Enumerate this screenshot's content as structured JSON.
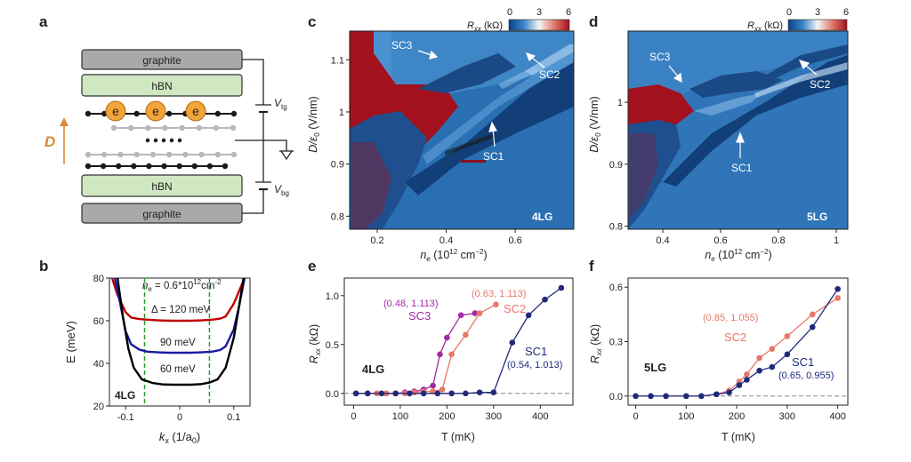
{
  "panels": {
    "a": {
      "label": "a",
      "layers": [
        {
          "label": "graphite"
        },
        {
          "label": "hBN"
        },
        {
          "label": "hBN"
        },
        {
          "label": "graphite"
        }
      ],
      "electron_label": "e",
      "vtg_label": "V",
      "vtg_sub": "tg",
      "vbg_label": "V",
      "vbg_sub": "bg",
      "field_label": "D",
      "colors": {
        "graphite": "#a9a9a9",
        "hbn": "#cfe8c2",
        "electron": "#f2a33a",
        "arrow": "#d98a3c",
        "atom_dark": "#1a1a1a",
        "atom_light": "#b8b8b8"
      }
    },
    "b": {
      "label": "b",
      "ne_text": "n",
      "ne_sub": "e",
      "ne_value": " = 0.6*10",
      "ne_sup": "12",
      "ne_unit": "cm",
      "ne_unit_sup": "-2",
      "delta_text": "Δ = 120 meV",
      "label_90": "90 meV",
      "label_60": "60 meV",
      "inset": "4LG"
    },
    "c": {
      "label": "c",
      "colorbar_label": "R",
      "colorbar_sub": "xx",
      "colorbar_unit": " (kΩ)",
      "colorbar_ticks": [
        "0",
        "3",
        "6"
      ],
      "sample": "4LG",
      "annotations": [
        "SC3",
        "SC2",
        "SC1"
      ]
    },
    "d": {
      "label": "d",
      "colorbar_label": "R",
      "colorbar_sub": "xx",
      "colorbar_unit": " (kΩ)",
      "colorbar_ticks": [
        "0",
        "3",
        "6"
      ],
      "sample": "5LG",
      "annotations": [
        "SC3",
        "SC2",
        "SC1"
      ]
    },
    "e": {
      "label": "e",
      "sample": "4LG",
      "sc3_coord": "(0.48, 1.113)",
      "sc2_coord": "(0.63, 1.113)",
      "sc1_coord": "(0.54, 1.013)"
    },
    "f": {
      "label": "f",
      "sample": "5LG",
      "sc2_coord": "(0.85, 1.055)",
      "sc1_coord": "(0.65, 0.955)"
    }
  },
  "chart_data": [
    {
      "panel": "b",
      "type": "line",
      "xlabel": "k",
      "xlabel_sub": "x",
      "xlabel_unit": " (1/a",
      "xlabel_unit_sub": "0",
      "xlabel_unit_end": ")",
      "ylabel": "E (meV)",
      "xlim": [
        -0.13,
        0.13
      ],
      "ylim": [
        20,
        80
      ],
      "xticks": [
        -0.1,
        0,
        0.1
      ],
      "xtick_labels": [
        "-0.1",
        "0",
        "0.1"
      ],
      "yticks": [
        20,
        40,
        60,
        80
      ],
      "vlines": [
        -0.065,
        0.055
      ],
      "series": [
        {
          "color": "#c00000",
          "x": [
            -0.125,
            -0.115,
            -0.1,
            -0.09,
            -0.075,
            -0.06,
            -0.04,
            -0.02,
            0,
            0.02,
            0.04,
            0.06,
            0.075,
            0.085,
            0.1,
            0.11,
            0.12
          ],
          "y": [
            80,
            72,
            64,
            61.5,
            60.8,
            60.5,
            60.2,
            60,
            60,
            60,
            60.2,
            60.5,
            61,
            62,
            68,
            74,
            80
          ]
        },
        {
          "color": "#1a1aa0",
          "x": [
            -0.12,
            -0.11,
            -0.1,
            -0.09,
            -0.075,
            -0.06,
            -0.04,
            -0.02,
            0,
            0.02,
            0.04,
            0.06,
            0.075,
            0.085,
            0.1,
            0.11,
            0.12
          ],
          "y": [
            80,
            68,
            55,
            49,
            46.5,
            45.5,
            45.2,
            45,
            45,
            45,
            45.2,
            45.5,
            46.3,
            48,
            56,
            67,
            80
          ]
        },
        {
          "color": "#000000",
          "x": [
            -0.115,
            -0.105,
            -0.095,
            -0.085,
            -0.07,
            -0.05,
            -0.03,
            -0.01,
            0,
            0.02,
            0.04,
            0.055,
            0.07,
            0.085,
            0.1,
            0.11,
            0.118
          ],
          "y": [
            80,
            62,
            47,
            38,
            32.5,
            30.8,
            30.1,
            30,
            30,
            30,
            30.3,
            31,
            32.5,
            38,
            52,
            67,
            80
          ]
        }
      ]
    },
    {
      "panel": "c",
      "type": "heatmap",
      "xlabel": "n",
      "xlabel_sub": "e",
      "xlabel_unit": " (10",
      "xlabel_unit_sup": "12",
      "xlabel_unit_end": " cm",
      "xlabel_unit_sup2": "−2",
      "xlabel_unit_close": ")",
      "ylabel": "D/ε",
      "ylabel_sub": "0",
      "ylabel_unit": " (V/nm)",
      "xlim": [
        0.12,
        0.77
      ],
      "ylim": [
        0.775,
        1.155
      ],
      "xticks": [
        0.2,
        0.4,
        0.6
      ],
      "yticks": [
        0.8,
        0.9,
        1.0,
        1.1
      ],
      "zlabel": "R_xx (kΩ)",
      "zlim": [
        0,
        6
      ]
    },
    {
      "panel": "d",
      "type": "heatmap",
      "xlabel": "n",
      "xlabel_sub": "e",
      "xlabel_unit": " (10",
      "xlabel_unit_sup": "12",
      "xlabel_unit_end": " cm",
      "xlabel_unit_sup2": "−2",
      "xlabel_unit_close": ")",
      "ylabel": "D/ε",
      "ylabel_sub": "0",
      "ylabel_unit": " (V/nm)",
      "xlim": [
        0.28,
        1.04
      ],
      "ylim": [
        0.795,
        1.115
      ],
      "xticks": [
        0.4,
        0.6,
        0.8,
        1.0
      ],
      "yticks": [
        0.8,
        0.9,
        1.0
      ],
      "zlabel": "R_xx (kΩ)",
      "zlim": [
        0,
        6
      ]
    },
    {
      "panel": "e",
      "type": "line",
      "xlabel": "T (mK)",
      "ylabel": "R",
      "ylabel_sub": "xx",
      "ylabel_unit": " (kΩ)",
      "xlim": [
        -20,
        470
      ],
      "ylim": [
        -0.12,
        1.18
      ],
      "xticks": [
        0,
        100,
        200,
        300,
        400
      ],
      "yticks": [
        0.0,
        0.5,
        1.0
      ],
      "ytick_labels": [
        "0.0",
        "0.5",
        "1.0"
      ],
      "baseline": 0,
      "series": [
        {
          "name": "SC3",
          "color": "#a52aa5",
          "x": [
            5,
            30,
            50,
            70,
            90,
            110,
            130,
            150,
            170,
            185,
            200,
            230,
            260
          ],
          "y": [
            0,
            0,
            0,
            0,
            0,
            0.01,
            0.02,
            0.04,
            0.08,
            0.4,
            0.57,
            0.8,
            0.82
          ]
        },
        {
          "name": "SC2",
          "color": "#e8776b",
          "x": [
            5,
            30,
            50,
            70,
            90,
            110,
            130,
            150,
            170,
            190,
            210,
            240,
            270,
            305
          ],
          "y": [
            0,
            0,
            0,
            0,
            0,
            0,
            0.01,
            0.02,
            0.02,
            0.04,
            0.4,
            0.6,
            0.82,
            0.91
          ]
        },
        {
          "name": "SC1",
          "color": "#1f2a7a",
          "x": [
            5,
            30,
            60,
            90,
            120,
            150,
            180,
            210,
            240,
            270,
            300,
            340,
            375,
            410,
            445
          ],
          "y": [
            0,
            0,
            0,
            0,
            0,
            0,
            0,
            0,
            0,
            0.01,
            0.01,
            0.52,
            0.8,
            0.96,
            1.08
          ]
        }
      ]
    },
    {
      "panel": "f",
      "type": "line",
      "xlabel": "T (mK)",
      "ylabel": "R",
      "ylabel_sub": "xx",
      "ylabel_unit": " (kΩ)",
      "xlim": [
        -15,
        420
      ],
      "ylim": [
        -0.05,
        0.65
      ],
      "xticks": [
        0,
        100,
        200,
        300,
        400
      ],
      "yticks": [
        0.0,
        0.3,
        0.6
      ],
      "ytick_labels": [
        "0.0",
        "0.3",
        "0.6"
      ],
      "baseline": 0,
      "series": [
        {
          "name": "SC2",
          "color": "#e8776b",
          "x": [
            0,
            30,
            60,
            100,
            130,
            160,
            185,
            205,
            220,
            245,
            270,
            300,
            350,
            400
          ],
          "y": [
            0,
            0,
            0,
            0,
            0,
            0.01,
            0.03,
            0.08,
            0.12,
            0.21,
            0.26,
            0.33,
            0.45,
            0.54
          ]
        },
        {
          "name": "SC1",
          "color": "#1f2a7a",
          "x": [
            0,
            30,
            60,
            100,
            130,
            160,
            185,
            205,
            220,
            245,
            270,
            300,
            350,
            400
          ],
          "y": [
            0,
            0,
            0,
            0,
            0,
            0.01,
            0.02,
            0.06,
            0.09,
            0.14,
            0.16,
            0.23,
            0.38,
            0.59
          ]
        }
      ]
    }
  ]
}
